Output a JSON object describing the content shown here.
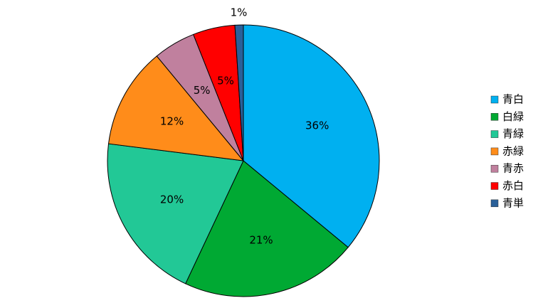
{
  "chart_data": {
    "type": "pie",
    "categories": [
      "青白",
      "白緑",
      "青緑",
      "赤緑",
      "青赤",
      "赤白",
      "青単"
    ],
    "values": [
      36,
      21,
      20,
      12,
      5,
      5,
      1
    ],
    "value_labels": [
      "36%",
      "21%",
      "20%",
      "12%",
      "5%",
      "5%",
      "1%"
    ],
    "colors": [
      "#00b0f0",
      "#00a933",
      "#22c896",
      "#ff8c1a",
      "#c0809e",
      "#ff0000",
      "#2a6099"
    ],
    "legend": "right"
  }
}
